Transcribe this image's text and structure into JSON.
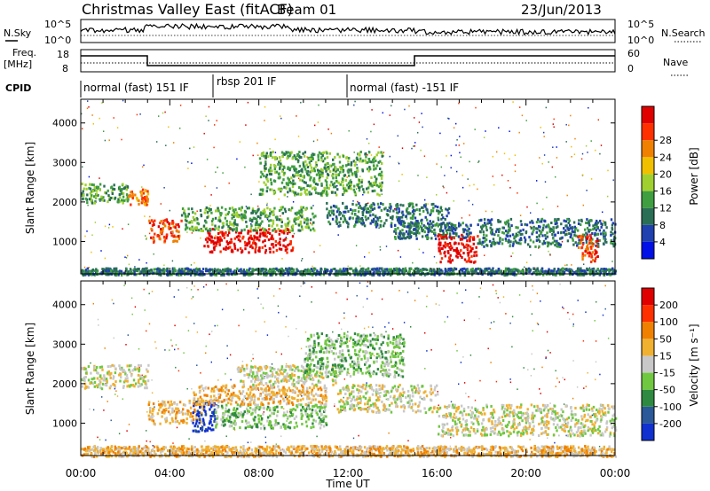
{
  "header": {
    "title": "Christmas Valley East (fitACF)",
    "beam": "Beam 01",
    "date": "23/Jun/2013"
  },
  "top_panels": {
    "nsky": {
      "left_label": "N.Sky",
      "right_label": "N.Search",
      "ticks": [
        "10^5",
        "10^0"
      ]
    },
    "freq": {
      "left_label": "Freq.",
      "left_unit": "[MHz]",
      "left_ticks": [
        18,
        8
      ],
      "right_label": "Nave",
      "right_ticks": [
        60,
        0
      ]
    },
    "cpid": {
      "label": "CPID",
      "segments": [
        {
          "text": "normal (fast) 151 IF",
          "start_hour": 0,
          "end_hour": 6
        },
        {
          "text": "rbsp 201 IF",
          "start_hour": 6,
          "end_hour": 12
        },
        {
          "text": "normal (fast) -151 IF",
          "start_hour": 12,
          "end_hour": 24
        }
      ]
    }
  },
  "chart_data": [
    {
      "type": "heatmap",
      "name": "Power",
      "ylabel": "Slant Range [km]",
      "ylim": [
        180,
        4600
      ],
      "yticks": [
        1000,
        2000,
        3000,
        4000
      ],
      "xlim": [
        0,
        24
      ],
      "colorbar": {
        "label": "Power [dB]",
        "ticks": [
          4,
          8,
          12,
          16,
          20,
          24,
          28
        ],
        "colors": [
          "#0010e6",
          "#2040b0",
          "#2a6e56",
          "#3e9e40",
          "#9fd030",
          "#f0c000",
          "#f08000",
          "#ff3000",
          "#e00000"
        ]
      },
      "features": [
        {
          "time": [
            0.0,
            2.1
          ],
          "range": [
            2000,
            2500
          ],
          "level": 3
        },
        {
          "time": [
            2.1,
            3.0
          ],
          "range": [
            1950,
            2350
          ],
          "level": 6
        },
        {
          "time": [
            3.0,
            4.5
          ],
          "range": [
            1000,
            1600
          ],
          "level": 7
        },
        {
          "time": [
            5.5,
            9.5
          ],
          "range": [
            750,
            1350
          ],
          "level": 8
        },
        {
          "time": [
            4.5,
            10.5
          ],
          "range": [
            1300,
            1900
          ],
          "level": 3
        },
        {
          "time": [
            8.0,
            13.5
          ],
          "range": [
            2200,
            3300
          ],
          "level": 3
        },
        {
          "time": [
            11.0,
            16.5
          ],
          "range": [
            1400,
            2000
          ],
          "level": 2
        },
        {
          "time": [
            14.0,
            17.5
          ],
          "range": [
            1100,
            1500
          ],
          "level": 2
        },
        {
          "time": [
            16.0,
            17.8
          ],
          "range": [
            500,
            1200
          ],
          "level": 8
        },
        {
          "time": [
            17.8,
            24.0
          ],
          "range": [
            900,
            1600
          ],
          "level": 2
        },
        {
          "time": [
            22.3,
            23.2
          ],
          "range": [
            500,
            1200
          ],
          "level": 7
        },
        {
          "time": [
            0.0,
            24.0
          ],
          "range": [
            180,
            350
          ],
          "level": 2
        }
      ]
    },
    {
      "type": "heatmap",
      "name": "Velocity",
      "ylabel": "Slant Range [km]",
      "ylim": [
        180,
        4600
      ],
      "yticks": [
        1000,
        2000,
        3000,
        4000
      ],
      "xlim": [
        0,
        24
      ],
      "xticks": [
        "00:00",
        "04:00",
        "08:00",
        "12:00",
        "16:00",
        "20:00",
        "00:00"
      ],
      "xlabel": "Time UT",
      "colorbar": {
        "label": "Velocity [m s⁻¹]",
        "ticks": [
          200,
          100,
          50,
          15,
          -15,
          -50,
          -100,
          -200
        ],
        "colors": [
          "#1030d0",
          "#2a5898",
          "#2e8a40",
          "#70c840",
          "#c8c8c8",
          "#f0b030",
          "#f08000",
          "#ff3000",
          "#e00000"
        ]
      },
      "features": [
        {
          "time": [
            0.0,
            3.0
          ],
          "range": [
            1900,
            2500
          ],
          "level": 4
        },
        {
          "time": [
            3.0,
            5.5
          ],
          "range": [
            1000,
            1600
          ],
          "level": 5
        },
        {
          "time": [
            5.0,
            6.0
          ],
          "range": [
            800,
            1600
          ],
          "level": 0
        },
        {
          "time": [
            6.0,
            11.0
          ],
          "range": [
            900,
            1500
          ],
          "level": 3
        },
        {
          "time": [
            5.0,
            11.0
          ],
          "range": [
            1500,
            2000
          ],
          "level": 5
        },
        {
          "time": [
            7.0,
            11.5
          ],
          "range": [
            2000,
            2500
          ],
          "level": 4
        },
        {
          "time": [
            10.0,
            14.5
          ],
          "range": [
            2200,
            3300
          ],
          "level": 3
        },
        {
          "time": [
            11.5,
            16.0
          ],
          "range": [
            1300,
            2000
          ],
          "level": 4
        },
        {
          "time": [
            16.0,
            24.0
          ],
          "range": [
            700,
            1500
          ],
          "level": 4
        },
        {
          "time": [
            0.0,
            24.0
          ],
          "range": [
            180,
            450
          ],
          "level": 5
        }
      ]
    }
  ]
}
